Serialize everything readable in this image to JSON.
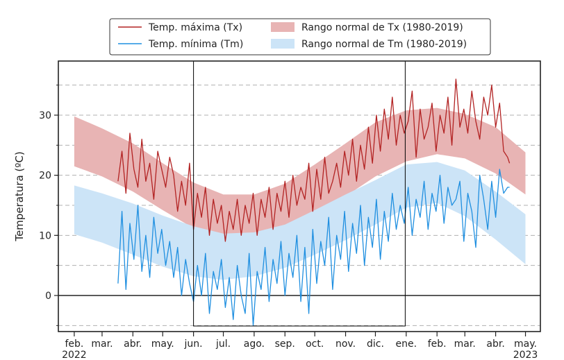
{
  "chart_data": {
    "type": "line",
    "ylabel": "Temperatura (ºC)",
    "ylim": [
      -6,
      39
    ],
    "yticks": [
      0,
      10,
      20,
      30
    ],
    "ygrid_dashed": [
      -5,
      5,
      10,
      15,
      20,
      25,
      30,
      35
    ],
    "zero_line": 0,
    "xlim": [
      "2022-01-16",
      "2023-05-16"
    ],
    "xticks": [
      {
        "date": "2022-02-01",
        "label": "feb."
      },
      {
        "date": "2022-03-01",
        "label": "mar."
      },
      {
        "date": "2022-04-01",
        "label": "abr."
      },
      {
        "date": "2022-05-01",
        "label": "may."
      },
      {
        "date": "2022-06-01",
        "label": "jun."
      },
      {
        "date": "2022-07-01",
        "label": "jul."
      },
      {
        "date": "2022-08-01",
        "label": "ago."
      },
      {
        "date": "2022-09-01",
        "label": "sep."
      },
      {
        "date": "2022-10-01",
        "label": "oct."
      },
      {
        "date": "2022-11-01",
        "label": "nov."
      },
      {
        "date": "2022-12-01",
        "label": "dic."
      },
      {
        "date": "2023-01-01",
        "label": "ene."
      },
      {
        "date": "2023-02-01",
        "label": "feb."
      },
      {
        "date": "2023-03-01",
        "label": "mar."
      },
      {
        "date": "2023-04-01",
        "label": "abr."
      },
      {
        "date": "2023-05-01",
        "label": "may."
      }
    ],
    "year_labels": [
      {
        "date": "2022-02-01",
        "label": "2022"
      },
      {
        "date": "2023-05-01",
        "label": "2023"
      }
    ],
    "highlight_box": {
      "start": "2022-06-01",
      "end": "2022-12-31"
    },
    "legend": {
      "placement": "top-center",
      "entries": [
        {
          "label": "Temp. máxima (Tx)",
          "kind": "line",
          "color": "#b22222"
        },
        {
          "label": "Rango normal de Tx (1980-2019)",
          "kind": "band",
          "color": "#e8b4b4"
        },
        {
          "label": "Temp. mínima (Tm)",
          "kind": "line",
          "color": "#1f8fe0"
        },
        {
          "label": "Rango normal de Tm (1980-2019)",
          "kind": "band",
          "color": "#cce4f7"
        }
      ]
    },
    "series": [
      {
        "name": "Rango normal de Tx (1980-2019)",
        "type": "band",
        "color": "#e8b4b4",
        "x": [
          "2022-02-01",
          "2022-03-01",
          "2022-04-01",
          "2022-05-01",
          "2022-06-01",
          "2022-07-01",
          "2022-08-01",
          "2022-09-01",
          "2022-10-01",
          "2022-11-01",
          "2022-12-01",
          "2023-01-01",
          "2023-02-01",
          "2023-03-01",
          "2023-04-01",
          "2023-05-01"
        ],
        "lower": [
          21.5,
          19.8,
          17.3,
          14.2,
          11.2,
          9.4,
          9.3,
          10.8,
          13.5,
          16.5,
          19.8,
          22.3,
          23.5,
          22.8,
          20.3,
          16.8
        ],
        "upper": [
          29.8,
          27.8,
          25.3,
          22.0,
          18.8,
          16.8,
          16.8,
          18.6,
          21.8,
          25.3,
          28.8,
          30.8,
          31.2,
          30.2,
          28.0,
          23.8
        ]
      },
      {
        "name": "Rango normal de Tm (1980-2019)",
        "type": "band",
        "color": "#cce4f7",
        "x": [
          "2022-02-01",
          "2022-03-01",
          "2022-04-01",
          "2022-05-01",
          "2022-06-01",
          "2022-07-01",
          "2022-08-01",
          "2022-09-01",
          "2022-10-01",
          "2022-11-01",
          "2022-12-01",
          "2023-01-01",
          "2023-02-01",
          "2023-03-01",
          "2023-04-01",
          "2023-05-01"
        ],
        "lower": [
          10.2,
          8.8,
          6.8,
          4.8,
          3.2,
          2.6,
          3.2,
          4.6,
          6.8,
          9.2,
          11.8,
          14.6,
          15.4,
          13.2,
          9.3,
          5.2
        ],
        "upper": [
          18.3,
          17.0,
          15.3,
          13.3,
          11.5,
          10.3,
          10.5,
          11.8,
          14.2,
          16.8,
          19.2,
          21.8,
          22.2,
          20.8,
          17.3,
          13.5
        ]
      },
      {
        "name": "Temp. máxima (Tx)",
        "type": "line",
        "color": "#b22222",
        "x": [
          "2022-03-17",
          "2022-03-21",
          "2022-03-25",
          "2022-03-29",
          "2022-04-02",
          "2022-04-06",
          "2022-04-10",
          "2022-04-14",
          "2022-04-18",
          "2022-04-22",
          "2022-04-26",
          "2022-04-30",
          "2022-05-04",
          "2022-05-08",
          "2022-05-12",
          "2022-05-16",
          "2022-05-20",
          "2022-05-24",
          "2022-05-28",
          "2022-06-01",
          "2022-06-05",
          "2022-06-09",
          "2022-06-13",
          "2022-06-17",
          "2022-06-21",
          "2022-06-25",
          "2022-06-29",
          "2022-07-03",
          "2022-07-07",
          "2022-07-11",
          "2022-07-15",
          "2022-07-19",
          "2022-07-23",
          "2022-07-27",
          "2022-07-31",
          "2022-08-04",
          "2022-08-08",
          "2022-08-12",
          "2022-08-16",
          "2022-08-20",
          "2022-08-24",
          "2022-08-28",
          "2022-09-01",
          "2022-09-05",
          "2022-09-09",
          "2022-09-13",
          "2022-09-17",
          "2022-09-21",
          "2022-09-25",
          "2022-09-29",
          "2022-10-03",
          "2022-10-07",
          "2022-10-11",
          "2022-10-15",
          "2022-10-19",
          "2022-10-23",
          "2022-10-27",
          "2022-10-31",
          "2022-11-04",
          "2022-11-08",
          "2022-11-12",
          "2022-11-16",
          "2022-11-20",
          "2022-11-24",
          "2022-11-28",
          "2022-12-02",
          "2022-12-06",
          "2022-12-10",
          "2022-12-14",
          "2022-12-18",
          "2022-12-22",
          "2022-12-26",
          "2022-12-30",
          "2023-01-03",
          "2023-01-07",
          "2023-01-11",
          "2023-01-15",
          "2023-01-19",
          "2023-01-23",
          "2023-01-27",
          "2023-01-31",
          "2023-02-04",
          "2023-02-08",
          "2023-02-12",
          "2023-02-16",
          "2023-02-20",
          "2023-02-24",
          "2023-02-28",
          "2023-03-04",
          "2023-03-08",
          "2023-03-12",
          "2023-03-16",
          "2023-03-20",
          "2023-03-24",
          "2023-03-28",
          "2023-04-01",
          "2023-04-05",
          "2023-04-09",
          "2023-04-13",
          "2023-04-15"
        ],
        "y": [
          19,
          24,
          17,
          27,
          21,
          18,
          26,
          19,
          22,
          16,
          24,
          21,
          18,
          23,
          20,
          14,
          19,
          15,
          22,
          11,
          17,
          13,
          18,
          10,
          16,
          12,
          15,
          9,
          14,
          11,
          16,
          10,
          15,
          12,
          17,
          10,
          16,
          13,
          18,
          11,
          17,
          14,
          19,
          13,
          20,
          15,
          18,
          16,
          22,
          14,
          21,
          16,
          23,
          17,
          19,
          22,
          18,
          24,
          20,
          26,
          19,
          25,
          21,
          28,
          22,
          30,
          24,
          31,
          26,
          33,
          25,
          30,
          27,
          29,
          34,
          23,
          31,
          26,
          28,
          32,
          24,
          30,
          27,
          33,
          25,
          36,
          28,
          31,
          27,
          34,
          29,
          26,
          33,
          30,
          35,
          28,
          32,
          24,
          23,
          22
        ]
      },
      {
        "name": "Temp. mínima (Tm)",
        "type": "line",
        "color": "#1f8fe0",
        "x": [
          "2022-03-17",
          "2022-03-21",
          "2022-03-25",
          "2022-03-29",
          "2022-04-02",
          "2022-04-06",
          "2022-04-10",
          "2022-04-14",
          "2022-04-18",
          "2022-04-22",
          "2022-04-26",
          "2022-04-30",
          "2022-05-04",
          "2022-05-08",
          "2022-05-12",
          "2022-05-16",
          "2022-05-20",
          "2022-05-24",
          "2022-05-28",
          "2022-06-01",
          "2022-06-05",
          "2022-06-09",
          "2022-06-13",
          "2022-06-17",
          "2022-06-21",
          "2022-06-25",
          "2022-06-29",
          "2022-07-03",
          "2022-07-07",
          "2022-07-11",
          "2022-07-15",
          "2022-07-19",
          "2022-07-23",
          "2022-07-27",
          "2022-07-31",
          "2022-08-04",
          "2022-08-08",
          "2022-08-12",
          "2022-08-16",
          "2022-08-20",
          "2022-08-24",
          "2022-08-28",
          "2022-09-01",
          "2022-09-05",
          "2022-09-09",
          "2022-09-13",
          "2022-09-17",
          "2022-09-21",
          "2022-09-25",
          "2022-09-29",
          "2022-10-03",
          "2022-10-07",
          "2022-10-11",
          "2022-10-15",
          "2022-10-19",
          "2022-10-23",
          "2022-10-27",
          "2022-10-31",
          "2022-11-04",
          "2022-11-08",
          "2022-11-12",
          "2022-11-16",
          "2022-11-20",
          "2022-11-24",
          "2022-11-28",
          "2022-12-02",
          "2022-12-06",
          "2022-12-10",
          "2022-12-14",
          "2022-12-18",
          "2022-12-22",
          "2022-12-26",
          "2022-12-30",
          "2023-01-03",
          "2023-01-07",
          "2023-01-11",
          "2023-01-15",
          "2023-01-19",
          "2023-01-23",
          "2023-01-27",
          "2023-01-31",
          "2023-02-04",
          "2023-02-08",
          "2023-02-12",
          "2023-02-16",
          "2023-02-20",
          "2023-02-24",
          "2023-02-28",
          "2023-03-04",
          "2023-03-08",
          "2023-03-12",
          "2023-03-16",
          "2023-03-20",
          "2023-03-24",
          "2023-03-28",
          "2023-04-01",
          "2023-04-05",
          "2023-04-09",
          "2023-04-13",
          "2023-04-15"
        ],
        "y": [
          2,
          14,
          1,
          12,
          6,
          15,
          4,
          10,
          3,
          13,
          7,
          11,
          5,
          9,
          3,
          8,
          0,
          6,
          2,
          -1,
          5,
          0,
          7,
          -3,
          4,
          1,
          6,
          -2,
          3,
          -4,
          5,
          0,
          -3,
          7,
          -5,
          4,
          1,
          8,
          -1,
          6,
          2,
          9,
          0,
          7,
          3,
          10,
          -1,
          8,
          -3,
          11,
          2,
          9,
          5,
          13,
          1,
          10,
          6,
          14,
          4,
          12,
          7,
          15,
          5,
          13,
          8,
          16,
          6,
          14,
          9,
          17,
          11,
          15,
          12,
          18,
          10,
          16,
          13,
          19,
          11,
          17,
          14,
          20,
          12,
          18,
          15,
          16,
          19,
          9,
          17,
          14,
          8,
          20,
          16,
          11,
          19,
          13,
          21,
          17,
          18,
          18
        ]
      }
    ]
  }
}
